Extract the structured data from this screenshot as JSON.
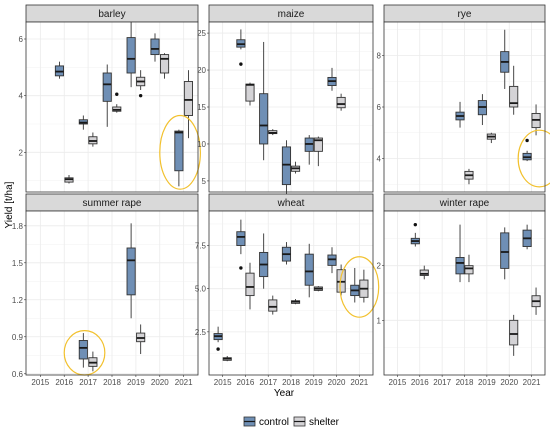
{
  "chart_data": {
    "type": "box",
    "xlabel": "Year",
    "ylabel": "Yield [t/ha]",
    "years": [
      "2015",
      "2016",
      "2017",
      "2018",
      "2019",
      "2020",
      "2021"
    ],
    "legend": [
      {
        "key": "control",
        "label": "control",
        "color": "#6f8fb5"
      },
      {
        "key": "shelter",
        "label": "shelter",
        "color": "#d4d3d6"
      }
    ],
    "highlight_color": "#f2c12e",
    "panels": [
      {
        "name": "barley",
        "ylim": [
          0.6,
          6.6
        ],
        "yticks": [
          2,
          4,
          6
        ],
        "boxes": [
          {
            "year": "2016",
            "group": "control",
            "min": 4.6,
            "q1": 4.7,
            "median": 4.85,
            "q3": 5.05,
            "max": 5.2
          },
          {
            "year": "2016",
            "group": "shelter",
            "min": 0.9,
            "q1": 0.95,
            "median": 1.05,
            "q3": 1.1,
            "max": 1.2
          },
          {
            "year": "2017",
            "group": "control",
            "min": 2.8,
            "q1": 3.0,
            "median": 3.05,
            "q3": 3.15,
            "max": 3.3
          },
          {
            "year": "2017",
            "group": "shelter",
            "min": 2.2,
            "q1": 2.3,
            "median": 2.4,
            "q3": 2.55,
            "max": 2.7
          },
          {
            "year": "2018",
            "group": "control",
            "min": 2.9,
            "q1": 3.8,
            "median": 4.4,
            "q3": 4.8,
            "max": 5.1
          },
          {
            "year": "2018",
            "group": "shelter",
            "min": 3.4,
            "q1": 3.45,
            "median": 3.5,
            "q3": 3.6,
            "max": 3.7,
            "outliers": [
              4.05
            ]
          },
          {
            "year": "2019",
            "group": "control",
            "min": 4.3,
            "q1": 4.8,
            "median": 5.3,
            "q3": 6.05,
            "max": 6.6
          },
          {
            "year": "2019",
            "group": "shelter",
            "min": 4.2,
            "q1": 4.35,
            "median": 4.5,
            "q3": 4.65,
            "max": 4.9,
            "outliers": [
              4.0
            ]
          },
          {
            "year": "2020",
            "group": "control",
            "min": 5.2,
            "q1": 5.45,
            "median": 5.65,
            "q3": 6.0,
            "max": 6.2
          },
          {
            "year": "2020",
            "group": "shelter",
            "min": 4.6,
            "q1": 4.8,
            "median": 5.3,
            "q3": 5.45,
            "max": 5.5
          },
          {
            "year": "2021",
            "group": "control",
            "min": 0.8,
            "q1": 1.35,
            "median": 2.7,
            "q3": 2.75,
            "max": 2.8
          },
          {
            "year": "2021",
            "group": "shelter",
            "min": 2.5,
            "q1": 3.3,
            "median": 3.85,
            "q3": 4.5,
            "max": 4.9
          }
        ],
        "highlight": {
          "year": 2020.85,
          "value": 2.0,
          "rx_years": 0.85,
          "ry_values": 1.3
        }
      },
      {
        "name": "maize",
        "ylim": [
          3.5,
          26.5
        ],
        "yticks": [
          5,
          10,
          15,
          20,
          25
        ],
        "boxes": [
          {
            "year": "2016",
            "group": "control",
            "min": 22.8,
            "q1": 23.1,
            "median": 23.5,
            "q3": 24.1,
            "max": 25.5,
            "outliers": [
              20.8
            ]
          },
          {
            "year": "2016",
            "group": "shelter",
            "min": 15.2,
            "q1": 15.8,
            "median": 18.0,
            "q3": 18.1,
            "max": 18.3
          },
          {
            "year": "2017",
            "group": "control",
            "min": 7.8,
            "q1": 10.0,
            "median": 12.5,
            "q3": 16.8,
            "max": 23.8
          },
          {
            "year": "2017",
            "group": "shelter",
            "min": 11.2,
            "q1": 11.4,
            "median": 11.5,
            "q3": 11.8,
            "max": 12.0
          },
          {
            "year": "2018",
            "group": "control",
            "min": 2.5,
            "q1": 4.5,
            "median": 7.2,
            "q3": 9.6,
            "max": 10.5
          },
          {
            "year": "2018",
            "group": "shelter",
            "min": 6.0,
            "q1": 6.3,
            "median": 6.7,
            "q3": 7.0,
            "max": 7.6
          },
          {
            "year": "2019",
            "group": "control",
            "min": 7.2,
            "q1": 9.0,
            "median": 10.0,
            "q3": 10.8,
            "max": 11.2
          },
          {
            "year": "2019",
            "group": "shelter",
            "min": 7.0,
            "q1": 9.0,
            "median": 10.5,
            "q3": 10.8,
            "max": 11.0
          },
          {
            "year": "2020",
            "group": "control",
            "min": 17.2,
            "q1": 17.9,
            "median": 18.5,
            "q3": 19.0,
            "max": 20.3
          },
          {
            "year": "2020",
            "group": "shelter",
            "min": 14.5,
            "q1": 14.9,
            "median": 15.4,
            "q3": 16.3,
            "max": 16.8
          }
        ]
      },
      {
        "name": "rye",
        "ylim": [
          2.7,
          9.3
        ],
        "yticks": [
          4,
          6,
          8
        ],
        "boxes": [
          {
            "year": "2018",
            "group": "control",
            "min": 5.2,
            "q1": 5.5,
            "median": 5.65,
            "q3": 5.8,
            "max": 6.2
          },
          {
            "year": "2018",
            "group": "shelter",
            "min": 3.0,
            "q1": 3.2,
            "median": 3.35,
            "q3": 3.5,
            "max": 3.6
          },
          {
            "year": "2019",
            "group": "control",
            "min": 5.3,
            "q1": 5.7,
            "median": 6.0,
            "q3": 6.25,
            "max": 6.5
          },
          {
            "year": "2019",
            "group": "shelter",
            "min": 4.6,
            "q1": 4.75,
            "median": 4.85,
            "q3": 4.95,
            "max": 5.0
          },
          {
            "year": "2020",
            "group": "control",
            "min": 6.7,
            "q1": 7.35,
            "median": 7.75,
            "q3": 8.15,
            "max": 9.0
          },
          {
            "year": "2020",
            "group": "shelter",
            "min": 5.7,
            "q1": 6.0,
            "median": 6.15,
            "q3": 6.8,
            "max": 7.6
          },
          {
            "year": "2021",
            "group": "control",
            "min": 3.9,
            "q1": 3.95,
            "median": 4.05,
            "q3": 4.2,
            "max": 4.3,
            "outliers": [
              4.7
            ]
          },
          {
            "year": "2021",
            "group": "shelter",
            "min": 4.9,
            "q1": 5.2,
            "median": 5.5,
            "q3": 5.75,
            "max": 6.1
          }
        ],
        "highlight": {
          "year": 2021.35,
          "value": 4.0,
          "rx_years": 0.95,
          "ry_values": 1.1
        }
      },
      {
        "name": "summer rape",
        "ylim": [
          0.59,
          1.92
        ],
        "yticks": [
          0.6,
          0.9,
          1.2,
          1.5,
          1.8
        ],
        "boxes": [
          {
            "year": "2017",
            "group": "control",
            "min": 0.65,
            "q1": 0.72,
            "median": 0.81,
            "q3": 0.87,
            "max": 0.93
          },
          {
            "year": "2017",
            "group": "shelter",
            "min": 0.62,
            "q1": 0.66,
            "median": 0.69,
            "q3": 0.73,
            "max": 0.78
          },
          {
            "year": "2019",
            "group": "control",
            "min": 1.05,
            "q1": 1.24,
            "median": 1.52,
            "q3": 1.62,
            "max": 1.82
          },
          {
            "year": "2019",
            "group": "shelter",
            "min": 0.76,
            "q1": 0.86,
            "median": 0.89,
            "q3": 0.93,
            "max": 1.0
          }
        ],
        "highlight": {
          "year": 2016.85,
          "value": 0.77,
          "rx_years": 0.85,
          "ry_values": 0.18
        }
      },
      {
        "name": "wheat",
        "ylim": [
          0.0,
          9.5
        ],
        "yticks": [
          2.5,
          5.0,
          7.5
        ],
        "ytick_labels": [
          "2.5",
          "5.0",
          "7.5"
        ],
        "boxes": [
          {
            "year": "2015",
            "group": "control",
            "min": 1.9,
            "q1": 2.05,
            "median": 2.25,
            "q3": 2.4,
            "max": 2.8,
            "outliers": [
              1.5
            ]
          },
          {
            "year": "2015",
            "group": "shelter",
            "min": 0.8,
            "q1": 0.85,
            "median": 0.95,
            "q3": 1.0,
            "max": 1.1
          },
          {
            "year": "2016",
            "group": "control",
            "min": 7.0,
            "q1": 7.5,
            "median": 8.0,
            "q3": 8.3,
            "max": 9.0,
            "outliers": [
              6.2
            ]
          },
          {
            "year": "2016",
            "group": "shelter",
            "min": 3.8,
            "q1": 4.6,
            "median": 5.1,
            "q3": 5.9,
            "max": 6.5
          },
          {
            "year": "2017",
            "group": "control",
            "min": 5.0,
            "q1": 5.7,
            "median": 6.4,
            "q3": 7.1,
            "max": 8.2
          },
          {
            "year": "2017",
            "group": "shelter",
            "min": 3.5,
            "q1": 3.7,
            "median": 3.95,
            "q3": 4.35,
            "max": 4.6
          },
          {
            "year": "2018",
            "group": "control",
            "min": 6.4,
            "q1": 6.6,
            "median": 7.0,
            "q3": 7.4,
            "max": 7.7
          },
          {
            "year": "2018",
            "group": "shelter",
            "min": 4.1,
            "q1": 4.15,
            "median": 4.25,
            "q3": 4.3,
            "max": 4.4
          },
          {
            "year": "2019",
            "group": "control",
            "min": 4.5,
            "q1": 5.2,
            "median": 6.0,
            "q3": 7.0,
            "max": 7.6
          },
          {
            "year": "2019",
            "group": "shelter",
            "min": 4.85,
            "q1": 4.9,
            "median": 5.0,
            "q3": 5.1,
            "max": 5.15
          },
          {
            "year": "2020",
            "group": "control",
            "min": 5.9,
            "q1": 6.35,
            "median": 6.7,
            "q3": 6.95,
            "max": 7.4
          },
          {
            "year": "2020",
            "group": "shelter",
            "min": 4.6,
            "q1": 4.8,
            "median": 5.4,
            "q3": 6.1,
            "max": 6.4
          },
          {
            "year": "2021",
            "group": "control",
            "min": 4.2,
            "q1": 4.6,
            "median": 4.9,
            "q3": 5.2,
            "max": 6.2
          },
          {
            "year": "2021",
            "group": "shelter",
            "min": 4.2,
            "q1": 4.5,
            "median": 5.0,
            "q3": 5.5,
            "max": 6.1
          }
        ],
        "highlight": {
          "year": 2021.0,
          "value": 5.1,
          "rx_years": 0.85,
          "ry_values": 1.75
        }
      },
      {
        "name": "winter rape",
        "ylim": [
          0.0,
          3.0
        ],
        "yticks": [
          1,
          2
        ],
        "boxes": [
          {
            "year": "2016",
            "group": "control",
            "min": 2.35,
            "q1": 2.4,
            "median": 2.45,
            "q3": 2.5,
            "max": 2.6,
            "outliers": [
              2.75
            ]
          },
          {
            "year": "2016",
            "group": "shelter",
            "min": 1.75,
            "q1": 1.82,
            "median": 1.85,
            "q3": 1.92,
            "max": 2.0
          },
          {
            "year": "2018",
            "group": "control",
            "min": 1.7,
            "q1": 1.85,
            "median": 2.05,
            "q3": 2.15,
            "max": 2.75
          },
          {
            "year": "2018",
            "group": "shelter",
            "min": 1.7,
            "q1": 1.85,
            "median": 1.95,
            "q3": 2.0,
            "max": 2.2
          },
          {
            "year": "2020",
            "group": "control",
            "min": 1.75,
            "q1": 1.95,
            "median": 2.25,
            "q3": 2.6,
            "max": 2.7
          },
          {
            "year": "2020",
            "group": "shelter",
            "min": 0.35,
            "q1": 0.55,
            "median": 0.75,
            "q3": 1.0,
            "max": 1.1
          },
          {
            "year": "2021",
            "group": "control",
            "min": 2.3,
            "q1": 2.35,
            "median": 2.5,
            "q3": 2.65,
            "max": 2.75
          },
          {
            "year": "2021",
            "group": "shelter",
            "min": 1.1,
            "q1": 1.25,
            "median": 1.35,
            "q3": 1.45,
            "max": 1.6
          }
        ]
      }
    ]
  }
}
